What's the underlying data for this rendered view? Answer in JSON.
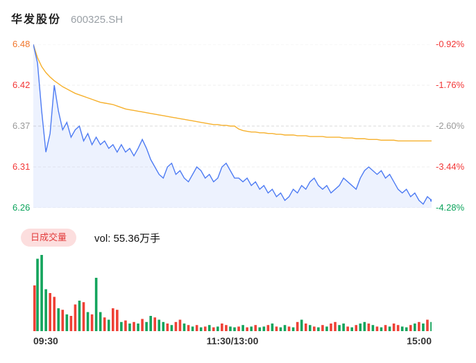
{
  "colors": {
    "up_red": "#f23636",
    "down_green": "#0ba35b",
    "neutral_gray": "#999999",
    "open_orange": "#f0762c",
    "price_line_blue": "#4d7bf3",
    "price_fill_blue": "rgba(77,123,243,0.10)",
    "avg_line_yellow": "#f6b02c",
    "vol_up_red": "#ef4136",
    "vol_down_green": "#13a45c",
    "badge_bg_pink": "#fcdede",
    "badge_text_red": "#e23c3c",
    "grid_gray": "#d8d8d8"
  },
  "header": {
    "stock_name": "华发股份",
    "stock_code": "600325.SH"
  },
  "price_axis": {
    "left": [
      {
        "text": "6.48",
        "color": "open_orange"
      },
      {
        "text": "6.42",
        "color": "up_red"
      },
      {
        "text": "6.37",
        "color": "neutral_gray"
      },
      {
        "text": "6.31",
        "color": "up_red"
      },
      {
        "text": "6.26",
        "color": "down_green"
      }
    ],
    "right": [
      {
        "text": "-0.92%",
        "color": "up_red"
      },
      {
        "text": "-1.76%",
        "color": "up_red"
      },
      {
        "text": "-2.60%",
        "color": "neutral_gray"
      },
      {
        "text": "-3.44%",
        "color": "up_red"
      },
      {
        "text": "-4.28%",
        "color": "down_green"
      }
    ]
  },
  "volume_header": {
    "badge_label": "日成交量",
    "volume_text": "vol: 55.36万手"
  },
  "x_axis": {
    "labels": [
      "09:30",
      "11:30/13:00",
      "15:00"
    ]
  },
  "chart_data": {
    "type": "line",
    "title": "华发股份 600325.SH 分时走势",
    "x_ticks": [
      "09:30",
      "11:30/13:00",
      "15:00"
    ],
    "y_min": 6.26,
    "y_max": 6.48,
    "y_ticks_price": [
      "6.48",
      "6.42",
      "6.37",
      "6.31",
      "6.26"
    ],
    "y_ticks_pct": [
      "-0.92%",
      "-1.76%",
      "-2.60%",
      "-3.44%",
      "-4.28%"
    ],
    "grid": "horizontal-dashed",
    "legend_position": "none",
    "series_names": [
      "price",
      "avg_price",
      "volume"
    ],
    "price": [
      6.48,
      6.455,
      6.39,
      6.335,
      6.36,
      6.425,
      6.39,
      6.365,
      6.375,
      6.355,
      6.365,
      6.37,
      6.35,
      6.36,
      6.345,
      6.355,
      6.345,
      6.35,
      6.34,
      6.345,
      6.335,
      6.345,
      6.335,
      6.34,
      6.33,
      6.34,
      6.352,
      6.34,
      6.325,
      6.315,
      6.305,
      6.3,
      6.315,
      6.32,
      6.305,
      6.31,
      6.3,
      6.295,
      6.305,
      6.315,
      6.31,
      6.3,
      6.305,
      6.295,
      6.3,
      6.315,
      6.32,
      6.31,
      6.3,
      6.3,
      6.295,
      6.3,
      6.29,
      6.295,
      6.285,
      6.29,
      6.28,
      6.285,
      6.275,
      6.28,
      6.27,
      6.275,
      6.285,
      6.28,
      6.29,
      6.285,
      6.295,
      6.3,
      6.29,
      6.285,
      6.29,
      6.28,
      6.285,
      6.29,
      6.3,
      6.295,
      6.29,
      6.285,
      6.3,
      6.31,
      6.315,
      6.31,
      6.305,
      6.31,
      6.3,
      6.305,
      6.295,
      6.285,
      6.28,
      6.285,
      6.275,
      6.28,
      6.27,
      6.265,
      6.275,
      6.27
    ],
    "avg": [
      6.48,
      6.462,
      6.45,
      6.442,
      6.436,
      6.431,
      6.427,
      6.423,
      6.42,
      6.417,
      6.414,
      6.412,
      6.41,
      6.408,
      6.406,
      6.404,
      6.402,
      6.401,
      6.4,
      6.399,
      6.397,
      6.395,
      6.393,
      6.392,
      6.391,
      6.39,
      6.389,
      6.388,
      6.387,
      6.386,
      6.385,
      6.384,
      6.383,
      6.382,
      6.381,
      6.38,
      6.379,
      6.378,
      6.377,
      6.376,
      6.375,
      6.374,
      6.373,
      6.372,
      6.372,
      6.371,
      6.371,
      6.37,
      6.37,
      6.366,
      6.364,
      6.363,
      6.362,
      6.362,
      6.361,
      6.361,
      6.36,
      6.36,
      6.359,
      6.359,
      6.358,
      6.358,
      6.358,
      6.357,
      6.357,
      6.357,
      6.356,
      6.356,
      6.356,
      6.356,
      6.355,
      6.355,
      6.355,
      6.355,
      6.354,
      6.354,
      6.354,
      6.353,
      6.353,
      6.353,
      6.352,
      6.352,
      6.352,
      6.351,
      6.351,
      6.351,
      6.351,
      6.35,
      6.35,
      6.35,
      6.35,
      6.35,
      6.35,
      6.35,
      6.35,
      6.35
    ],
    "volume": {
      "total_label": "vol: 55.36万手",
      "values": [
        0.6,
        0.95,
        1.0,
        0.55,
        0.5,
        0.45,
        0.3,
        0.28,
        0.22,
        0.2,
        0.35,
        0.4,
        0.38,
        0.25,
        0.22,
        0.7,
        0.25,
        0.18,
        0.15,
        0.3,
        0.28,
        0.12,
        0.14,
        0.1,
        0.12,
        0.1,
        0.16,
        0.12,
        0.2,
        0.18,
        0.15,
        0.12,
        0.1,
        0.08,
        0.12,
        0.15,
        0.1,
        0.08,
        0.06,
        0.08,
        0.05,
        0.06,
        0.08,
        0.05,
        0.06,
        0.1,
        0.08,
        0.06,
        0.05,
        0.06,
        0.08,
        0.05,
        0.06,
        0.08,
        0.05,
        0.06,
        0.08,
        0.1,
        0.06,
        0.05,
        0.08,
        0.06,
        0.05,
        0.12,
        0.15,
        0.1,
        0.08,
        0.06,
        0.05,
        0.08,
        0.06,
        0.1,
        0.12,
        0.08,
        0.1,
        0.06,
        0.05,
        0.08,
        0.1,
        0.12,
        0.1,
        0.08,
        0.06,
        0.05,
        0.08,
        0.06,
        0.1,
        0.08,
        0.06,
        0.05,
        0.08,
        0.1,
        0.12,
        0.1,
        0.15,
        0.12
      ],
      "colors": [
        "r",
        "g",
        "g",
        "g",
        "r",
        "r",
        "g",
        "r",
        "g",
        "r",
        "r",
        "g",
        "r",
        "g",
        "r",
        "g",
        "g",
        "r",
        "g",
        "r",
        "r",
        "g",
        "r",
        "g",
        "r",
        "g",
        "r",
        "g",
        "g",
        "r",
        "g",
        "g",
        "r",
        "g",
        "r",
        "r",
        "g",
        "r",
        "g",
        "r",
        "g",
        "r",
        "g",
        "r",
        "g",
        "r",
        "r",
        "g",
        "g",
        "r",
        "g",
        "r",
        "g",
        "r",
        "g",
        "g",
        "r",
        "g",
        "r",
        "g",
        "g",
        "r",
        "g",
        "r",
        "g",
        "r",
        "g",
        "r",
        "g",
        "r",
        "g",
        "r",
        "r",
        "g",
        "g",
        "r",
        "g",
        "r",
        "g",
        "g",
        "r",
        "g",
        "r",
        "g",
        "r",
        "g",
        "r",
        "r",
        "g",
        "g",
        "r",
        "g",
        "r",
        "g",
        "r",
        "g"
      ]
    }
  }
}
